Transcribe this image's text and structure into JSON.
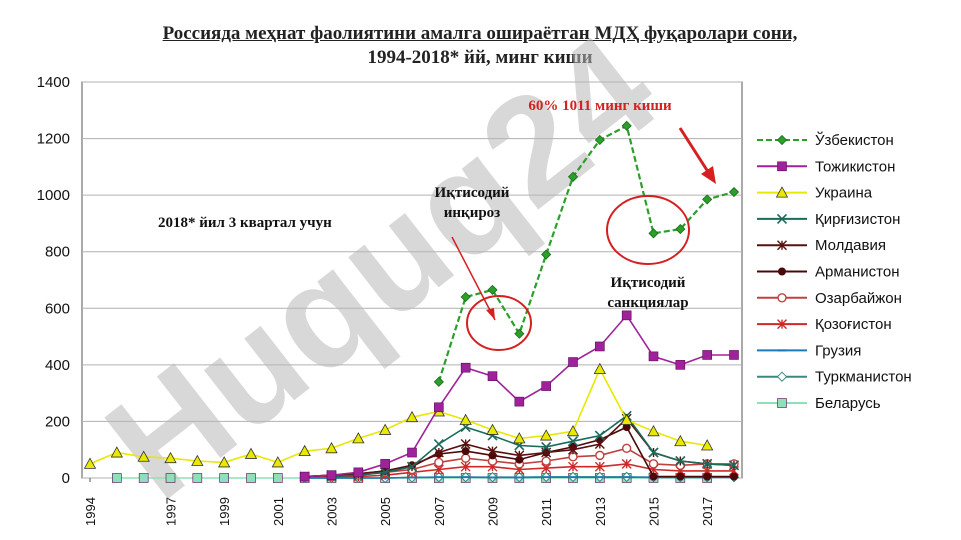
{
  "title": {
    "line1": "Россияда меҳнат фаолиятини амалга ошираётган МДҲ фуқаролари сони,",
    "line2": "1994-2018* йй, минг киши"
  },
  "watermark": "Huquq24",
  "annotations": {
    "note_2018": "2018* йил 3 квартал учун",
    "crisis_line1": "Иқтисодий",
    "crisis_line2": "инқироз",
    "sanctions_line1": "Иқтисодий",
    "sanctions_line2": "санкциялар",
    "peak_label": "60% 1011 минг киши"
  },
  "colors": {
    "annotation_red": "#d42020",
    "circle_red": "#d42020"
  },
  "chart_data": {
    "type": "line",
    "x": [
      1994,
      1995,
      1996,
      1997,
      1998,
      1999,
      2000,
      2001,
      2002,
      2003,
      2004,
      2005,
      2006,
      2007,
      2008,
      2009,
      2010,
      2011,
      2012,
      2013,
      2014,
      2015,
      2016,
      2017,
      2018
    ],
    "x_tick_labels": [
      "1994",
      "1997",
      "1999",
      "2001",
      "2003",
      "2005",
      "2007",
      "2009",
      "2011",
      "2013",
      "2015",
      "2017"
    ],
    "x_tick_years": [
      1994,
      1997,
      1999,
      2001,
      2003,
      2005,
      2007,
      2009,
      2011,
      2013,
      2015,
      2017
    ],
    "ylim": [
      0,
      1400
    ],
    "y_ticks": [
      0,
      200,
      400,
      600,
      800,
      1000,
      1200,
      1400
    ],
    "grid": true,
    "legend_position": "right",
    "series": [
      {
        "name": "Ўзбекистон",
        "color": "#2aa02a",
        "marker": "diamond",
        "dash": "6,3",
        "values": [
          null,
          null,
          null,
          null,
          null,
          null,
          null,
          null,
          null,
          null,
          null,
          null,
          null,
          340,
          640,
          665,
          510,
          790,
          1065,
          1195,
          1245,
          865,
          880,
          985,
          1011
        ]
      },
      {
        "name": "Тожикистон",
        "color": "#a0229a",
        "marker": "square",
        "dash": "",
        "values": [
          null,
          null,
          null,
          null,
          null,
          null,
          null,
          null,
          5,
          10,
          20,
          50,
          90,
          250,
          390,
          360,
          270,
          325,
          410,
          465,
          575,
          430,
          400,
          435,
          435
        ]
      },
      {
        "name": "Украина",
        "color": "#e8e800",
        "marker": "triangle",
        "dash": "",
        "values": [
          50,
          90,
          75,
          70,
          60,
          55,
          85,
          55,
          95,
          105,
          140,
          170,
          215,
          235,
          205,
          170,
          140,
          150,
          165,
          385,
          205,
          165,
          130,
          115,
          null
        ]
      },
      {
        "name": "Қирғизистон",
        "color": "#1b6b5a",
        "marker": "x",
        "dash": "",
        "values": [
          null,
          null,
          null,
          null,
          null,
          null,
          null,
          null,
          null,
          5,
          10,
          20,
          40,
          120,
          180,
          150,
          115,
          110,
          130,
          150,
          220,
          90,
          60,
          50,
          45
        ]
      },
      {
        "name": "Молдавия",
        "color": "#5a1010",
        "marker": "star",
        "dash": "",
        "values": [
          null,
          null,
          null,
          null,
          null,
          null,
          null,
          null,
          5,
          10,
          15,
          25,
          40,
          90,
          120,
          95,
          80,
          90,
          100,
          120,
          210,
          90,
          60,
          50,
          45
        ]
      },
      {
        "name": "Арманистон",
        "color": "#4a0808",
        "marker": "circle",
        "dash": "",
        "values": [
          null,
          null,
          null,
          null,
          null,
          null,
          null,
          null,
          5,
          10,
          15,
          25,
          45,
          85,
          95,
          80,
          65,
          90,
          110,
          135,
          180,
          5,
          5,
          5,
          5
        ]
      },
      {
        "name": "Озарбайжон",
        "color": "#c04040",
        "marker": "circle-open",
        "dash": "",
        "values": [
          null,
          null,
          null,
          null,
          null,
          null,
          null,
          null,
          null,
          5,
          10,
          20,
          30,
          55,
          70,
          60,
          50,
          60,
          75,
          80,
          105,
          50,
          45,
          50,
          50
        ]
      },
      {
        "name": "Қозоғистон",
        "color": "#d02828",
        "marker": "star",
        "dash": "",
        "values": [
          null,
          null,
          null,
          null,
          null,
          null,
          null,
          null,
          5,
          5,
          5,
          10,
          20,
          30,
          40,
          40,
          30,
          35,
          40,
          40,
          50,
          30,
          25,
          25,
          25
        ]
      },
      {
        "name": "Грузия",
        "color": "#1e7ab4",
        "marker": "dash",
        "dash": "",
        "values": [
          null,
          null,
          null,
          null,
          null,
          null,
          null,
          null,
          0,
          0,
          0,
          0,
          2,
          3,
          3,
          2,
          2,
          3,
          3,
          3,
          3,
          2,
          2,
          2,
          2
        ]
      },
      {
        "name": "Туркманистон",
        "color": "#3a8a7a",
        "marker": "diamond-open",
        "dash": "",
        "values": [
          null,
          null,
          null,
          null,
          null,
          null,
          null,
          null,
          0,
          0,
          0,
          0,
          2,
          3,
          3,
          3,
          3,
          4,
          4,
          4,
          4,
          3,
          3,
          3,
          3
        ]
      },
      {
        "name": "Беларусь",
        "color": "#8de0b8",
        "marker": "square",
        "dash": "",
        "values": [
          null,
          0,
          0,
          0,
          0,
          0,
          0,
          0,
          0,
          0,
          0,
          0,
          0,
          0,
          0,
          0,
          0,
          0,
          0,
          0,
          0,
          0,
          0,
          0,
          null
        ]
      }
    ]
  }
}
